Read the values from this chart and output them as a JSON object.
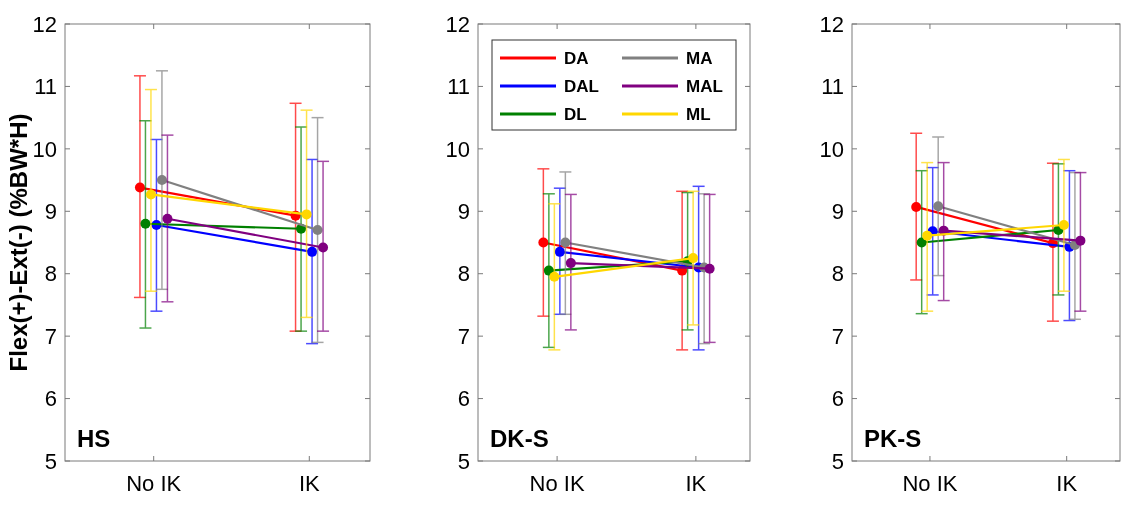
{
  "chart_data": [
    {
      "type": "line",
      "ylabel": "Flex(+)-Ext(-) (%BW*H)",
      "categories": [
        "No IK",
        "IK"
      ],
      "ylim": [
        5,
        12
      ],
      "yticks": [
        5,
        6,
        7,
        8,
        9,
        10,
        11,
        12
      ],
      "marker": "circle",
      "legend": false,
      "annotations": [
        "HS"
      ],
      "series": [
        {
          "color": "#ff0000",
          "values": [
            9.38,
            8.93
          ],
          "errors": [
            [
              7.62,
              11.17
            ],
            [
              7.08,
              10.73
            ]
          ]
        },
        {
          "color": "#0000ff",
          "values": [
            8.78,
            8.35
          ],
          "errors": [
            [
              7.4,
              10.15
            ],
            [
              6.88,
              9.83
            ]
          ]
        },
        {
          "color": "#008000",
          "values": [
            8.8,
            8.72
          ],
          "errors": [
            [
              7.13,
              10.45
            ],
            [
              7.08,
              10.35
            ]
          ]
        },
        {
          "color": "#808080",
          "values": [
            9.5,
            8.7
          ],
          "errors": [
            [
              7.75,
              11.25
            ],
            [
              6.9,
              10.5
            ]
          ]
        },
        {
          "color": "#800080",
          "values": [
            8.88,
            8.42
          ],
          "errors": [
            [
              7.55,
              10.22
            ],
            [
              7.08,
              9.8
            ]
          ]
        },
        {
          "color": "#ffd700",
          "values": [
            9.27,
            8.95
          ],
          "errors": [
            [
              7.72,
              10.95
            ],
            [
              7.3,
              10.62
            ]
          ]
        }
      ]
    },
    {
      "type": "line",
      "categories": [
        "No IK",
        "IK"
      ],
      "ylim": [
        5,
        12
      ],
      "yticks": [
        5,
        6,
        7,
        8,
        9,
        10,
        11,
        12
      ],
      "marker": "circle",
      "legend": "top",
      "annotations": [
        "DK-S"
      ],
      "series": [
        {
          "name": "DA",
          "color": "#ff0000",
          "values": [
            8.5,
            8.05
          ],
          "errors": [
            [
              7.32,
              9.68
            ],
            [
              6.78,
              9.32
            ]
          ]
        },
        {
          "name": "DAL",
          "color": "#0000ff",
          "values": [
            8.35,
            8.1
          ],
          "errors": [
            [
              7.35,
              9.37
            ],
            [
              6.78,
              9.4
            ]
          ]
        },
        {
          "name": "DL",
          "color": "#008000",
          "values": [
            8.05,
            8.2
          ],
          "errors": [
            [
              6.82,
              9.28
            ],
            [
              7.1,
              9.3
            ]
          ]
        },
        {
          "name": "MA",
          "color": "#808080",
          "values": [
            8.5,
            8.1
          ],
          "errors": [
            [
              7.35,
              9.63
            ],
            [
              6.88,
              9.28
            ]
          ]
        },
        {
          "name": "MAL",
          "color": "#800080",
          "values": [
            8.17,
            8.08
          ],
          "errors": [
            [
              7.1,
              9.27
            ],
            [
              6.9,
              9.27
            ]
          ]
        },
        {
          "name": "ML",
          "color": "#ffd700",
          "values": [
            7.95,
            8.25
          ],
          "errors": [
            [
              6.78,
              9.12
            ],
            [
              7.18,
              9.32
            ]
          ]
        }
      ]
    },
    {
      "type": "line",
      "categories": [
        "No IK",
        "IK"
      ],
      "ylim": [
        5,
        12
      ],
      "yticks": [
        5,
        6,
        7,
        8,
        9,
        10,
        11,
        12
      ],
      "marker": "circle",
      "legend": false,
      "annotations": [
        "PK-S"
      ],
      "series": [
        {
          "color": "#ff0000",
          "values": [
            9.07,
            8.49
          ],
          "errors": [
            [
              7.9,
              10.25
            ],
            [
              7.24,
              9.77
            ]
          ]
        },
        {
          "color": "#0000ff",
          "values": [
            8.68,
            8.43
          ],
          "errors": [
            [
              7.66,
              9.7
            ],
            [
              7.25,
              9.65
            ]
          ]
        },
        {
          "color": "#008000",
          "values": [
            8.5,
            8.7
          ],
          "errors": [
            [
              7.36,
              9.65
            ],
            [
              7.66,
              9.76
            ]
          ]
        },
        {
          "color": "#808080",
          "values": [
            9.08,
            8.46
          ],
          "errors": [
            [
              7.97,
              10.19
            ],
            [
              7.27,
              9.62
            ]
          ]
        },
        {
          "color": "#800080",
          "values": [
            8.69,
            8.53
          ],
          "errors": [
            [
              7.57,
              9.78
            ],
            [
              7.4,
              9.62
            ]
          ]
        },
        {
          "color": "#ffd700",
          "values": [
            8.61,
            8.78
          ],
          "errors": [
            [
              7.4,
              9.78
            ],
            [
              7.72,
              9.83
            ]
          ]
        }
      ]
    }
  ]
}
